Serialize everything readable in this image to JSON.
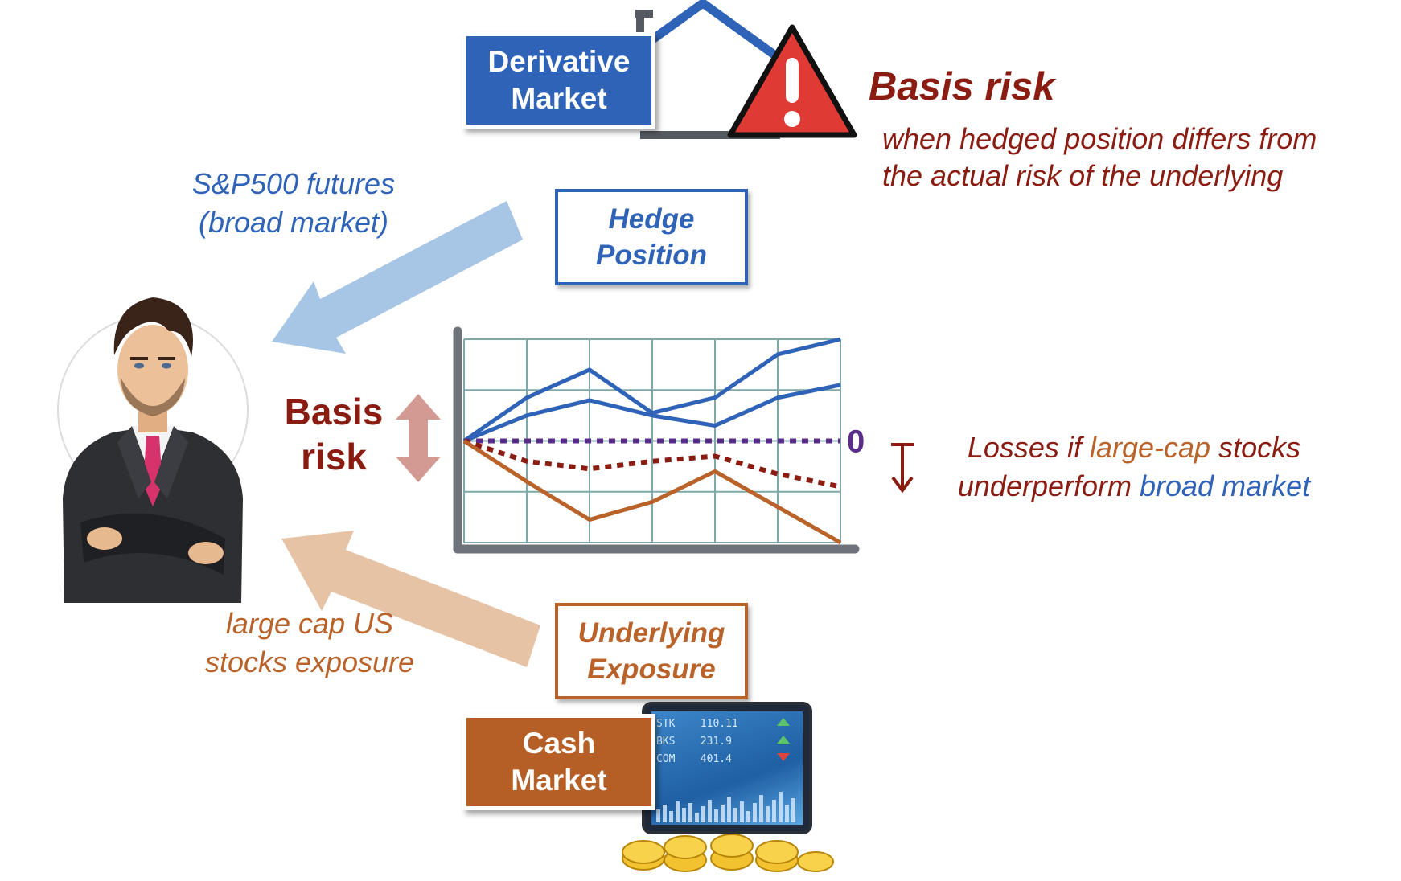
{
  "derivative_market": {
    "line1": "Derivative",
    "line2": "Market"
  },
  "cash_market": {
    "line1": "Cash",
    "line2": "Market"
  },
  "hedge_position": {
    "line1": "Hedge",
    "line2": "Position"
  },
  "underlying_exposure": {
    "line1": "Underlying",
    "line2": "Exposure"
  },
  "basis_risk_title": "Basis risk",
  "basis_risk_desc": {
    "line1": "when hedged position differs from",
    "line2": "the actual risk of the underlying"
  },
  "futures_note": {
    "line1": "S&P500 futures",
    "line2": "(broad market)"
  },
  "exposure_note": {
    "line1": "large cap US",
    "line2": "stocks exposure"
  },
  "basis_label": {
    "line1": "Basis",
    "line2": "risk"
  },
  "zero_label": "0",
  "losses_note": {
    "line1_pre": "Losses if ",
    "line1_em": "large-cap",
    "line1_post": " stocks",
    "line2_pre": "underperform ",
    "line2_em": "broad market"
  },
  "tablet_rows": [
    {
      "sym": "STK",
      "val": "110.11"
    },
    {
      "sym": "BKS",
      "val": "231.9"
    },
    {
      "sym": "COM",
      "val": "401.4"
    }
  ],
  "colors": {
    "blue": "#2f63b8",
    "light_blue": "#a7c5e5",
    "orange": "#b9632a",
    "peach": "#e7c3a6",
    "dark_red": "#8a1c12",
    "purple": "#5b2d8a",
    "warning_red": "#e03a35",
    "grid_teal": "#7fa8a9",
    "axis_gray": "#6e7379"
  },
  "chart_data": {
    "type": "line",
    "x": [
      0,
      1,
      2,
      3,
      4,
      5,
      6
    ],
    "ylim": [
      -2,
      2
    ],
    "zero_line_label": "0",
    "series": [
      {
        "values": [
          0,
          0.85,
          1.4,
          0.55,
          0.85,
          1.7,
          2.0
        ],
        "color": "blue",
        "style": "solid"
      },
      {
        "values": [
          0,
          0.5,
          0.8,
          0.5,
          0.3,
          0.85,
          1.1
        ],
        "color": "blue",
        "style": "solid"
      },
      {
        "values": [
          0,
          0,
          0,
          0,
          0,
          0,
          0
        ],
        "color": "purple",
        "style": "dotted"
      },
      {
        "values": [
          0,
          -0.4,
          -0.55,
          -0.4,
          -0.3,
          -0.65,
          -0.9
        ],
        "color": "dark_red",
        "style": "dotted"
      },
      {
        "values": [
          0,
          -0.8,
          -1.55,
          -1.2,
          -0.6,
          -1.3,
          -2.0
        ],
        "color": "orange",
        "style": "solid"
      }
    ]
  }
}
